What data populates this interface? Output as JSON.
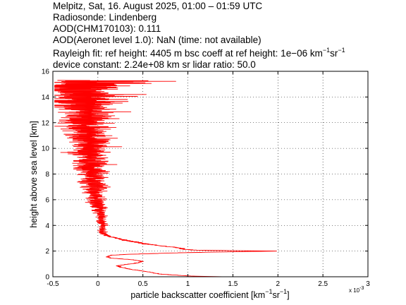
{
  "header": {
    "line1": "Melpitz, Sat, 16. August 2025, 01:00 – 01:59 UTC",
    "line2": "Radiosonde: Lindenberg",
    "line3": "AOD(CHM170103): 0.111",
    "line4": "AOD(Aeronet level 1.0): NaN   (time: not available)",
    "line5_a": "Rayleigh fit:     ref height: 4405 m     bsc coeff at ref height: 1e−06 km",
    "line5_sup1": "−1",
    "line5_b": "sr",
    "line5_sup2": "−1",
    "line6": "device constant: 2.24e+08 km sr     lidar ratio: 50.0"
  },
  "chart_data": {
    "type": "line",
    "xlabel_main": "particle backscatter coefficient [km",
    "xlabel_sup1": "−1",
    "xlabel_mid": "sr",
    "xlabel_sup2": "−1",
    "xlabel_end": "]",
    "ylabel": "height above sea level [km]",
    "x_exponent_base": "x 10",
    "x_exponent_power": "-3",
    "xlim": [
      -0.5,
      3
    ],
    "ylim": [
      0,
      16
    ],
    "xticks": [
      -0.5,
      0,
      0.5,
      1,
      1.5,
      2,
      2.5,
      3
    ],
    "xtick_labels": [
      "-0.5",
      "0",
      "0.5",
      "1",
      "1.5",
      "2",
      "2.5",
      "3"
    ],
    "yticks": [
      0,
      2,
      4,
      6,
      8,
      10,
      12,
      14,
      16
    ],
    "ytick_labels": [
      "0",
      "2",
      "4",
      "6",
      "8",
      "10",
      "12",
      "14",
      "16"
    ],
    "grid": true,
    "series": [
      {
        "color": "#ff0000",
        "profile_x": [
          1.38,
          1.05,
          0.7,
          0.5,
          0.35,
          0.25,
          0.22,
          0.3,
          0.42,
          0.5,
          0.35,
          0.15,
          0.1,
          0.15,
          0.35,
          0.6,
          0.8,
          1.0,
          1.25,
          1.6,
          2.0,
          1.6,
          1.1,
          0.95,
          0.9,
          0.7,
          0.5,
          0.3,
          0.15,
          0.08,
          0.05,
          0.04,
          0.05,
          0.06,
          0.05,
          0.04,
          0.03,
          0.0,
          -0.02,
          -0.03,
          -0.03,
          -0.05,
          -0.05,
          -0.06,
          -0.07,
          -0.08,
          -0.1,
          -0.1,
          -0.12,
          -0.13,
          -0.12,
          -0.12,
          -0.13,
          -0.15,
          -0.2,
          -0.12
        ],
        "profile_y": [
          0.0,
          0.05,
          0.2,
          0.45,
          0.6,
          0.75,
          0.85,
          0.95,
          1.05,
          1.2,
          1.35,
          1.45,
          1.55,
          1.68,
          1.75,
          1.8,
          1.85,
          1.88,
          1.92,
          1.96,
          2.0,
          2.03,
          2.07,
          2.15,
          2.25,
          2.4,
          2.6,
          2.85,
          3.1,
          3.3,
          3.45,
          3.6,
          3.8,
          4.0,
          4.3,
          4.6,
          5.0,
          5.5,
          6.0,
          6.5,
          7.0,
          7.5,
          8.0,
          8.5,
          9.0,
          9.5,
          10.0,
          10.5,
          11.0,
          11.5,
          12.0,
          12.5,
          13.0,
          13.5,
          14.5,
          15.3
        ],
        "noise_amplitude": [
          0.0,
          0.01,
          0.01,
          0.01,
          0.01,
          0.01,
          0.01,
          0.01,
          0.01,
          0.01,
          0.01,
          0.01,
          0.01,
          0.01,
          0.01,
          0.02,
          0.02,
          0.02,
          0.02,
          0.02,
          0.02,
          0.02,
          0.02,
          0.02,
          0.02,
          0.02,
          0.02,
          0.02,
          0.02,
          0.02,
          0.02,
          0.02,
          0.02,
          0.02,
          0.03,
          0.03,
          0.04,
          0.05,
          0.05,
          0.06,
          0.07,
          0.08,
          0.08,
          0.09,
          0.1,
          0.11,
          0.12,
          0.12,
          0.13,
          0.14,
          0.15,
          0.16,
          0.18,
          0.2,
          0.25,
          0.28
        ]
      }
    ]
  }
}
